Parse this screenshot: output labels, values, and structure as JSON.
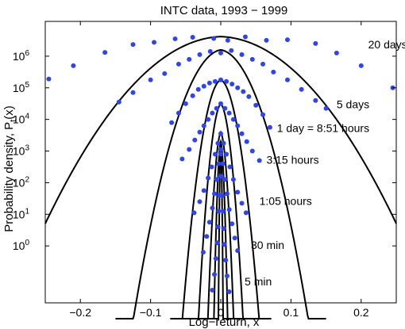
{
  "chart_data": {
    "type": "scatter",
    "title": "INTC data, 1993 − 1999",
    "xlabel": "Log−return, x",
    "ylabel_main": "Probability density, P",
    "ylabel_sub": "t",
    "ylabel_tail": "(x)",
    "xlim": [
      -0.25,
      0.25
    ],
    "ylim_decades": [
      -1.8,
      7.1
    ],
    "y_scale": "log",
    "y_tick_note": "tick values are powers of ten; exponent shown as superscript",
    "x_ticks": [
      {
        "value": -0.2,
        "label": "−0.2"
      },
      {
        "value": -0.1,
        "label": "−0.1"
      },
      {
        "value": 0,
        "label": "0"
      },
      {
        "value": 0.1,
        "label": "0.1"
      },
      {
        "value": 0.2,
        "label": "0.2"
      }
    ],
    "y_ticks": [
      {
        "exp": 0,
        "base": "10",
        "sup": "0"
      },
      {
        "exp": 1,
        "base": "10",
        "sup": "1"
      },
      {
        "exp": 2,
        "base": "10",
        "sup": "2"
      },
      {
        "exp": 3,
        "base": "10",
        "sup": "3"
      },
      {
        "exp": 4,
        "base": "10",
        "sup": "4"
      },
      {
        "exp": 5,
        "base": "10",
        "sup": "5"
      },
      {
        "exp": 6,
        "base": "10",
        "sup": "6"
      }
    ],
    "grid": false,
    "legend": "none",
    "colors": {
      "points": "#2f45e8",
      "curves": "#000000"
    },
    "series": [
      {
        "name": "20 days",
        "label_pos": {
          "x": 0.21,
          "log10y": 6.25
        },
        "curve": {
          "peak_log10": 6.62,
          "a": 2.0,
          "b": 210.0,
          "x_range": [
            -0.25,
            0.25
          ]
        },
        "points": [
          [
            -0.245,
            5.28
          ],
          [
            -0.21,
            5.7
          ],
          [
            -0.165,
            6.12
          ],
          [
            -0.125,
            6.37
          ],
          [
            -0.095,
            6.44
          ],
          [
            -0.065,
            6.55
          ],
          [
            -0.04,
            6.6
          ],
          [
            -0.01,
            6.56
          ],
          [
            0.01,
            6.5
          ],
          [
            0.035,
            6.61
          ],
          [
            0.065,
            6.5
          ],
          [
            0.095,
            6.52
          ],
          [
            0.135,
            6.4
          ],
          [
            0.165,
            6.1
          ],
          [
            0.2,
            5.7
          ],
          [
            0.245,
            5.0
          ]
        ]
      },
      {
        "name": "5 days",
        "label_pos": {
          "x": 0.165,
          "log10y": 4.35
        },
        "curve": {
          "peak_log10": 6.2,
          "a": 8.0,
          "b": 1200.0,
          "x_range": [
            -0.15,
            0.15
          ]
        },
        "points": [
          [
            -0.145,
            4.55
          ],
          [
            -0.125,
            4.85
          ],
          [
            -0.1,
            5.25
          ],
          [
            -0.08,
            5.45
          ],
          [
            -0.06,
            5.75
          ],
          [
            -0.045,
            5.9
          ],
          [
            -0.03,
            6.05
          ],
          [
            -0.015,
            6.15
          ],
          [
            0.0,
            6.1
          ],
          [
            0.015,
            6.18
          ],
          [
            0.03,
            6.05
          ],
          [
            0.045,
            5.9
          ],
          [
            0.06,
            5.75
          ],
          [
            0.075,
            5.5
          ],
          [
            0.095,
            5.25
          ],
          [
            0.115,
            4.95
          ],
          [
            0.135,
            4.6
          ],
          [
            0.15,
            4.35
          ]
        ]
      },
      {
        "name": "1 day = 8:51 hours",
        "label_pos": {
          "x": 0.08,
          "log10y": 3.6
        },
        "curve": {
          "peak_log10": 5.25,
          "a": 18.0,
          "b": 5500.0,
          "x_range": [
            -0.072,
            0.072
          ]
        },
        "points": [
          [
            -0.07,
            3.9
          ],
          [
            -0.06,
            4.2
          ],
          [
            -0.05,
            4.5
          ],
          [
            -0.04,
            4.75
          ],
          [
            -0.032,
            4.95
          ],
          [
            -0.024,
            5.05
          ],
          [
            -0.016,
            5.15
          ],
          [
            -0.008,
            5.2
          ],
          [
            0.0,
            5.25
          ],
          [
            0.008,
            5.2
          ],
          [
            0.016,
            5.12
          ],
          [
            0.024,
            5.0
          ],
          [
            0.032,
            4.88
          ],
          [
            0.04,
            4.72
          ],
          [
            0.05,
            4.45
          ],
          [
            0.06,
            4.15
          ],
          [
            0.07,
            3.75
          ]
        ]
      },
      {
        "name": "3:15 hours",
        "label_pos": {
          "x": 0.065,
          "log10y": 2.6
        },
        "curve": {
          "peak_log10": 4.5,
          "a": 50.0,
          "b": 14000.0,
          "x_range": [
            -0.058,
            0.058
          ]
        },
        "points": [
          [
            -0.055,
            2.75
          ],
          [
            -0.045,
            3.05
          ],
          [
            -0.037,
            3.35
          ],
          [
            -0.03,
            3.6
          ],
          [
            -0.024,
            3.8
          ],
          [
            -0.018,
            4.0
          ],
          [
            -0.012,
            4.2
          ],
          [
            -0.006,
            4.35
          ],
          [
            0.0,
            4.5
          ],
          [
            0.006,
            4.35
          ],
          [
            0.012,
            4.2
          ],
          [
            0.018,
            4.0
          ],
          [
            0.024,
            3.8
          ],
          [
            0.03,
            3.55
          ],
          [
            0.037,
            3.3
          ],
          [
            0.045,
            3.0
          ],
          [
            0.055,
            2.7
          ]
        ]
      },
      {
        "name": "1:05 hours",
        "label_pos": {
          "x": 0.055,
          "log10y": 1.3
        },
        "curve": {
          "peak_log10": 3.6,
          "a": 85.0,
          "b": 36000.0,
          "x_range": [
            -0.04,
            0.04
          ]
        },
        "points": [
          [
            -0.038,
            1.05
          ],
          [
            -0.03,
            1.4
          ],
          [
            -0.024,
            1.75
          ],
          [
            -0.018,
            2.15
          ],
          [
            -0.013,
            2.5
          ],
          [
            -0.008,
            2.9
          ],
          [
            -0.004,
            3.25
          ],
          [
            0.0,
            3.55
          ],
          [
            0.004,
            3.25
          ],
          [
            0.008,
            2.9
          ],
          [
            0.013,
            2.5
          ],
          [
            0.018,
            2.1
          ],
          [
            0.024,
            1.7
          ],
          [
            0.03,
            1.35
          ],
          [
            0.036,
            1.05
          ]
        ]
      },
      {
        "name": "30 min",
        "label_pos": {
          "x": 0.043,
          "log10y": -0.1
        },
        "curve": {
          "peak_log10": 3.3,
          "a": 160.0,
          "b": 120000.0,
          "x_range": [
            -0.028,
            0.028
          ]
        },
        "points": [
          [
            -0.025,
            -0.2
          ],
          [
            -0.02,
            0.3
          ],
          [
            -0.016,
            0.75
          ],
          [
            -0.012,
            1.2
          ],
          [
            -0.009,
            1.65
          ],
          [
            -0.006,
            2.1
          ],
          [
            -0.003,
            2.6
          ],
          [
            0.0,
            3.05
          ],
          [
            0.003,
            2.6
          ],
          [
            0.006,
            2.1
          ],
          [
            0.009,
            1.65
          ],
          [
            0.012,
            1.15
          ],
          [
            0.016,
            0.7
          ],
          [
            0.02,
            0.25
          ],
          [
            0.024,
            -0.15
          ]
        ]
      },
      {
        "name": "5 min",
        "label_pos": {
          "x": 0.034,
          "log10y": -1.25
        },
        "curve": {
          "peak_log10": 3.3,
          "a": 600.0,
          "b": 950000.0,
          "x_range": [
            -0.014,
            0.014
          ]
        },
        "points": [
          [
            -0.012,
            -1.4
          ],
          [
            -0.009,
            -0.9
          ],
          [
            -0.007,
            -0.4
          ],
          [
            -0.005,
            0.1
          ],
          [
            -0.004,
            0.6
          ],
          [
            -0.003,
            1.1
          ],
          [
            -0.002,
            1.6
          ],
          [
            -0.001,
            2.2
          ],
          [
            0.0,
            2.9
          ],
          [
            0.001,
            2.2
          ],
          [
            0.002,
            1.6
          ],
          [
            0.003,
            1.1
          ],
          [
            0.004,
            0.55
          ],
          [
            0.005,
            0.05
          ],
          [
            0.007,
            -0.45
          ],
          [
            0.009,
            -0.95
          ],
          [
            0.012,
            -1.45
          ]
        ]
      }
    ]
  }
}
